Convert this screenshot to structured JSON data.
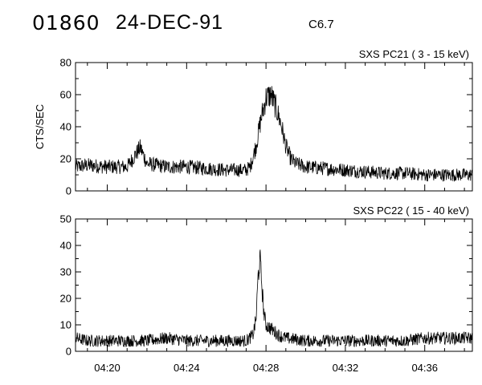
{
  "header": {
    "event_id": "01860",
    "date": "24-DEC-91",
    "flare_class": "C6.7"
  },
  "chart_data": [
    {
      "type": "line",
      "title": "SXS PC21  (  3 - 15 keV)",
      "ylabel": "CTS/SEC",
      "xlabel": "",
      "xlim": [
        "04:18:24",
        "04:38:24"
      ],
      "ylim": [
        0,
        80
      ],
      "yticks": [
        "0",
        "20",
        "40",
        "60",
        "80"
      ],
      "xtick_labels": [],
      "series": [
        {
          "x": [
            "04:18:24",
            "04:19:00",
            "04:20:00",
            "04:21:00",
            "04:21:40",
            "04:22:00",
            "04:23:00",
            "04:24:00",
            "04:25:00",
            "04:26:00",
            "04:27:00",
            "04:27:12",
            "04:27:30",
            "04:27:45",
            "04:28:00",
            "04:28:15",
            "04:28:30",
            "04:28:45",
            "04:29:00",
            "04:29:15",
            "04:29:30",
            "04:30:00",
            "04:31:00",
            "04:32:00",
            "04:33:00",
            "04:34:00",
            "04:35:00",
            "04:36:00",
            "04:37:00",
            "04:38:24"
          ],
          "values": [
            15,
            16,
            15,
            15,
            27,
            17,
            15,
            15,
            14,
            13,
            13,
            15,
            28,
            45,
            58,
            60,
            52,
            42,
            28,
            20,
            17,
            15,
            14,
            13,
            12,
            11,
            11,
            10,
            10,
            10
          ]
        }
      ],
      "grid": false
    },
    {
      "type": "line",
      "title": "SXS PC22  ( 15 - 40 keV)",
      "ylabel": "",
      "xlabel": "",
      "xlim": [
        "04:18:24",
        "04:38:24"
      ],
      "ylim": [
        0,
        50
      ],
      "yticks": [
        "0",
        "10",
        "20",
        "30",
        "40",
        "50"
      ],
      "xtick_labels": [
        "04:20",
        "04:24",
        "04:28",
        "04:32",
        "04:36"
      ],
      "series": [
        {
          "x": [
            "04:18:24",
            "04:19:00",
            "04:20:00",
            "04:21:00",
            "04:22:00",
            "04:23:00",
            "04:24:00",
            "04:25:00",
            "04:26:00",
            "04:27:00",
            "04:27:20",
            "04:27:30",
            "04:27:36",
            "04:27:42",
            "04:27:48",
            "04:27:54",
            "04:28:00",
            "04:28:10",
            "04:28:20",
            "04:28:40",
            "04:29:00",
            "04:30:00",
            "04:31:00",
            "04:32:00",
            "04:33:00",
            "04:34:00",
            "04:35:00",
            "04:36:00",
            "04:37:00",
            "04:38:24"
          ],
          "values": [
            5,
            4,
            4,
            4,
            4,
            5,
            4,
            4,
            4,
            4,
            6,
            12,
            28,
            35,
            24,
            14,
            10,
            9,
            8,
            6,
            5,
            4,
            4,
            4,
            4,
            4,
            4,
            5,
            5,
            5
          ]
        }
      ],
      "grid": false
    }
  ]
}
